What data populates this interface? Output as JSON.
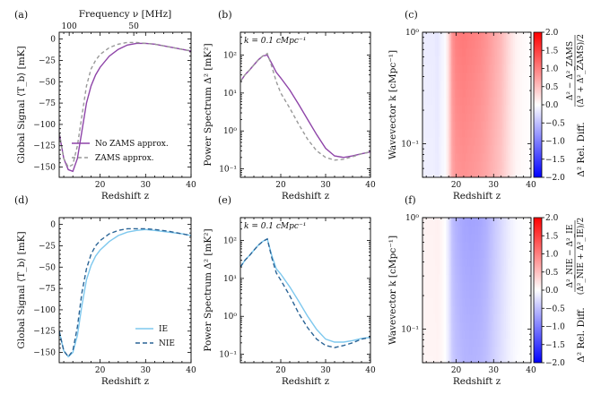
{
  "chart_data": [
    {
      "id": "a",
      "type": "line",
      "panel_label": "(a)",
      "xlabel": "Redshift z",
      "ylabel": "Global Signal ⟨T_b⟩ [mK]",
      "top_xlabel": "Frequency ν [MHz]",
      "top_ticks": [
        {
          "z": 13.2,
          "label": "100"
        },
        {
          "z": 27.4,
          "label": "50"
        }
      ],
      "xlim": [
        11,
        40
      ],
      "ylim": [
        -162,
        8
      ],
      "xticks": [
        20,
        30,
        40
      ],
      "yticks": [
        0,
        -25,
        -50,
        -75,
        -100,
        -125,
        -150
      ],
      "yticklabels": [
        "0",
        "−25",
        "−50",
        "−75",
        "−100",
        "−125",
        "−150"
      ],
      "legend_position": "lower-right",
      "series": [
        {
          "name": "No ZAMS approx.",
          "color": "#8e44a8",
          "dash": "solid",
          "x": [
            11,
            12,
            13,
            14,
            15,
            16,
            17,
            18,
            19,
            20,
            22,
            24,
            26,
            28,
            30,
            32,
            35,
            38,
            40
          ],
          "y": [
            -110,
            -140,
            -153,
            -155,
            -140,
            -108,
            -75,
            -55,
            -42,
            -33,
            -20,
            -12,
            -7,
            -5,
            -5,
            -6,
            -9,
            -12,
            -14
          ]
        },
        {
          "name": "ZAMS approx.",
          "color": "#999999",
          "dash": "4,3",
          "x": [
            11,
            12,
            13,
            14,
            15,
            16,
            17,
            18,
            19,
            20,
            22,
            24,
            26,
            28,
            30,
            32,
            35,
            38,
            40
          ],
          "y": [
            -110,
            -140,
            -150,
            -147,
            -125,
            -90,
            -55,
            -35,
            -25,
            -18,
            -10,
            -6,
            -4,
            -4,
            -5,
            -6,
            -9,
            -12,
            -14
          ]
        }
      ]
    },
    {
      "id": "b",
      "type": "line",
      "panel_label": "(b)",
      "annotation": "k = 0.1 cMpc⁻¹",
      "xlabel": "Redshift z",
      "ylabel": "Power Spectrum Δ² [mK²]",
      "yscale": "log",
      "xlim": [
        11,
        40
      ],
      "ylim": [
        0.06,
        400
      ],
      "xticks": [
        20,
        30,
        40
      ],
      "yticks": [
        0.1,
        1,
        10,
        100
      ],
      "yticklabels": [
        "10⁻¹",
        "10⁰",
        "10¹",
        "10²"
      ],
      "series": [
        {
          "name": "No ZAMS approx.",
          "color": "#8e44a8",
          "dash": "solid",
          "x": [
            11,
            12,
            13,
            14,
            15,
            16,
            17,
            18,
            19,
            20,
            22,
            24,
            26,
            28,
            30,
            32,
            34,
            36,
            38,
            40
          ],
          "y": [
            20,
            30,
            40,
            55,
            75,
            95,
            100,
            60,
            35,
            25,
            12,
            5,
            2,
            0.8,
            0.35,
            0.22,
            0.2,
            0.22,
            0.25,
            0.28
          ]
        },
        {
          "name": "ZAMS approx.",
          "color": "#999999",
          "dash": "4,3",
          "x": [
            11,
            12,
            13,
            14,
            15,
            16,
            17,
            18,
            19,
            20,
            22,
            24,
            26,
            28,
            30,
            32,
            34,
            36,
            38,
            40
          ],
          "y": [
            20,
            30,
            40,
            55,
            75,
            95,
            110,
            50,
            20,
            10,
            4,
            1.5,
            0.6,
            0.3,
            0.2,
            0.17,
            0.18,
            0.21,
            0.25,
            0.28
          ]
        }
      ]
    },
    {
      "id": "c",
      "type": "heatmap",
      "panel_label": "(c)",
      "xlabel": "Redshift z",
      "ylabel": "Wavevector k [cMpc⁻¹]",
      "yscale": "log",
      "xlim": [
        11,
        40
      ],
      "ylim": [
        0.05,
        1
      ],
      "xticks": [
        20,
        30,
        40
      ],
      "yticks": [
        0.1,
        1
      ],
      "yticklabels": [
        "10⁻¹",
        "10⁰"
      ],
      "colorbar": {
        "min": -2.0,
        "max": 2.0,
        "ticks": [
          "2.0",
          "1.5",
          "1.0",
          "0.5",
          "0.0",
          "−0.5",
          "−1.0",
          "−1.5",
          "−2.0"
        ],
        "label": "Δ² Rel. Diff.",
        "formula_top": "Δ² − Δ²_ZAMS",
        "formula_bottom": "(Δ² + Δ²_ZAMS)/2"
      },
      "profile_z": [
        14,
        15,
        16,
        17,
        18,
        19,
        20,
        22,
        24,
        26,
        28,
        30,
        32,
        34,
        36,
        38,
        40
      ],
      "profile_value": [
        -0.15,
        -0.2,
        -0.1,
        -0.05,
        0.3,
        0.85,
        1.0,
        1.05,
        1.0,
        0.95,
        0.85,
        0.7,
        0.55,
        0.3,
        0.1,
        0.04,
        0.02
      ]
    },
    {
      "id": "d",
      "type": "line",
      "panel_label": "(d)",
      "xlabel": "Redshift z",
      "ylabel": "Global Signal ⟨T_b⟩ [mK]",
      "xlim": [
        11,
        40
      ],
      "ylim": [
        -162,
        8
      ],
      "xticks": [
        20,
        30,
        40
      ],
      "yticks": [
        0,
        -25,
        -50,
        -75,
        -100,
        -125,
        -150
      ],
      "yticklabels": [
        "0",
        "−25",
        "−50",
        "−75",
        "−100",
        "−125",
        "−150"
      ],
      "legend_position": "lower-right",
      "series": [
        {
          "name": "IE",
          "color": "#7ec8ee",
          "dash": "solid",
          "x": [
            11,
            12,
            13,
            14,
            15,
            16,
            17,
            18,
            19,
            20,
            22,
            24,
            26,
            28,
            30,
            32,
            35,
            38,
            40
          ],
          "y": [
            -125,
            -148,
            -155,
            -150,
            -130,
            -95,
            -65,
            -48,
            -37,
            -30,
            -20,
            -13,
            -9,
            -7,
            -6,
            -7,
            -9,
            -11,
            -13
          ]
        },
        {
          "name": "NIE",
          "color": "#2a6496",
          "dash": "5,3",
          "x": [
            11,
            12,
            13,
            14,
            15,
            16,
            17,
            18,
            19,
            20,
            22,
            24,
            26,
            28,
            30,
            32,
            35,
            38,
            40
          ],
          "y": [
            -125,
            -148,
            -155,
            -148,
            -120,
            -80,
            -52,
            -35,
            -25,
            -19,
            -11,
            -7,
            -5,
            -5,
            -5,
            -6,
            -8,
            -11,
            -13
          ]
        }
      ]
    },
    {
      "id": "e",
      "type": "line",
      "panel_label": "(e)",
      "annotation": "k = 0.1 cMpc⁻¹",
      "xlabel": "Redshift z",
      "ylabel": "Power Spectrum Δ² [mK²]",
      "yscale": "log",
      "xlim": [
        11,
        40
      ],
      "ylim": [
        0.06,
        400
      ],
      "xticks": [
        20,
        30,
        40
      ],
      "yticks": [
        0.1,
        1,
        10,
        100
      ],
      "yticklabels": [
        "10⁻¹",
        "10⁰",
        "10¹",
        "10²"
      ],
      "series": [
        {
          "name": "IE",
          "color": "#7ec8ee",
          "dash": "solid",
          "x": [
            11,
            12,
            13,
            14,
            15,
            16,
            17,
            18,
            19,
            20,
            22,
            24,
            26,
            28,
            30,
            32,
            34,
            36,
            38,
            40
          ],
          "y": [
            20,
            30,
            40,
            55,
            75,
            95,
            110,
            40,
            18,
            13,
            6,
            2.5,
            1,
            0.45,
            0.25,
            0.21,
            0.21,
            0.23,
            0.26,
            0.28
          ]
        },
        {
          "name": "NIE",
          "color": "#2a6496",
          "dash": "5,3",
          "x": [
            11,
            12,
            13,
            14,
            15,
            16,
            17,
            18,
            19,
            20,
            22,
            24,
            26,
            28,
            30,
            32,
            34,
            36,
            38,
            40
          ],
          "y": [
            20,
            30,
            40,
            55,
            75,
            95,
            110,
            35,
            14,
            9,
            3.5,
            1.2,
            0.5,
            0.25,
            0.17,
            0.15,
            0.17,
            0.2,
            0.25,
            0.28
          ]
        }
      ]
    },
    {
      "id": "f",
      "type": "heatmap",
      "panel_label": "(f)",
      "xlabel": "Redshift z",
      "ylabel": "Wavevector k [cMpc⁻¹]",
      "yscale": "log",
      "xlim": [
        11,
        40
      ],
      "ylim": [
        0.05,
        1
      ],
      "xticks": [
        20,
        30,
        40
      ],
      "yticks": [
        0.1,
        1
      ],
      "yticklabels": [
        "10⁻¹",
        "10⁰"
      ],
      "colorbar": {
        "min": -2.0,
        "max": 2.0,
        "ticks": [
          "2.0",
          "1.5",
          "1.0",
          "0.5",
          "0.0",
          "−0.5",
          "−1.0",
          "−1.5",
          "−2.0"
        ],
        "label": "Δ² Rel. Diff.",
        "formula_top": "Δ²_NIE − Δ²_IE",
        "formula_bottom": "(Δ²_NIE + Δ²_IE)/2"
      },
      "profile_z": [
        14,
        15,
        16,
        17,
        18,
        19,
        20,
        22,
        24,
        26,
        28,
        30,
        32,
        34,
        36,
        38,
        40
      ],
      "profile_value": [
        0.1,
        0.12,
        0.08,
        0.0,
        -0.2,
        -0.5,
        -0.6,
        -0.7,
        -0.72,
        -0.7,
        -0.62,
        -0.45,
        -0.3,
        -0.15,
        -0.05,
        -0.01,
        0.0
      ]
    }
  ]
}
